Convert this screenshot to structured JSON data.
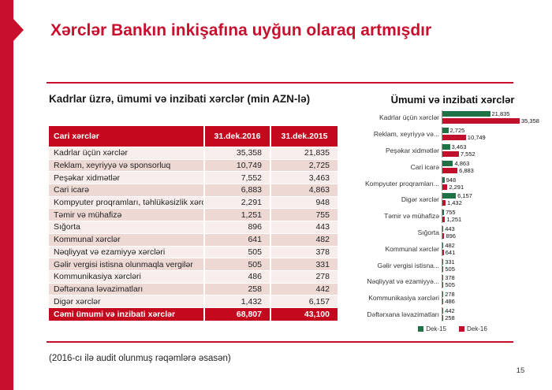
{
  "slide": {
    "title": "Xərclər Bankın inkişafına uyğun olaraq artmışdır",
    "footnote": "(2016-cı ilə audit olunmuş rəqəmlərə əsasən)",
    "page_number": "15"
  },
  "colors": {
    "brand_red": "#C8102E",
    "table_header_red": "#C4091E",
    "row_light": "#F7EDEB",
    "row_dark": "#EDD8D4",
    "bar_green": "#1F7246",
    "bar_red": "#C0102C"
  },
  "table": {
    "title": "Kadrlar üzrə, ümumi və inzibati xərclər (min AZN-lə)",
    "headers": [
      "Cari xərclər",
      "31.dek.2016",
      "31.dek.2015"
    ],
    "rows": [
      [
        "Kadrlar üçün xərclər",
        "35,358",
        "21,835"
      ],
      [
        "Reklam, xeyriyyə və sponsorluq",
        "10,749",
        "2,725"
      ],
      [
        "Peşəkar xidmətlər",
        "7,552",
        "3,463"
      ],
      [
        "Cari icarə",
        "6,883",
        "4,863"
      ],
      [
        "Kompyuter proqramları, təhlükəsizlik xərcləri",
        "2,291",
        "948"
      ],
      [
        "Təmir və mühafizə",
        "1,251",
        "755"
      ],
      [
        "Sığorta",
        "896",
        "443"
      ],
      [
        "Kommunal xərclər",
        "641",
        "482"
      ],
      [
        "Nəqliyyat və ezamiyyə xərcləri",
        "505",
        "378"
      ],
      [
        "Gəlir vergisi istisna olunmaqla vergilər",
        "505",
        "331"
      ],
      [
        "Kommunikasiya xərcləri",
        "486",
        "278"
      ],
      [
        "Dəftərxana ləvazimatları",
        "258",
        "442"
      ],
      [
        "Digər xərclər",
        "1,432",
        "6,157"
      ]
    ],
    "total_row": [
      "Cəmi ümumi və inzibati xərclər",
      "68,807",
      "43,100"
    ]
  },
  "chart_data": {
    "type": "bar",
    "orientation": "horizontal",
    "title": "Ümumi və inzibati xərclər",
    "categories": [
      "Kadrlar üçün xərclər",
      "Reklam, xeyriyyə və...",
      "Peşəkar xidmətlər",
      "Cari icarə",
      "Kompyuter proqramları...",
      "Digər xərclər",
      "Təmir və mühafizə",
      "Sığorta",
      "Kommunal xərclər",
      "Gəlir vergisi istisna...",
      "Nəqliyyat və ezamiyyə...",
      "Kommunikasiya xərcləri",
      "Dəftərxana ləvazimatları"
    ],
    "series": [
      {
        "name": "Dek-15",
        "color": "#1F7246",
        "values": [
          21835,
          2725,
          3463,
          4863,
          948,
          6157,
          755,
          443,
          482,
          331,
          378,
          278,
          442
        ],
        "labels": [
          "21,835",
          "2,725",
          "3,463",
          "4,863",
          "948",
          "6,157",
          "755",
          "443",
          "482",
          "331",
          "378",
          "278",
          "442"
        ]
      },
      {
        "name": "Dek-16",
        "color": "#C0102C",
        "values": [
          35358,
          10749,
          7552,
          6883,
          2291,
          1432,
          1251,
          896,
          641,
          505,
          505,
          486,
          258
        ],
        "labels": [
          "35,358",
          "10,749",
          "7,552",
          "6,883",
          "2,291",
          "1,432",
          "1,251",
          "896",
          "641",
          "505",
          "505",
          "486",
          "258"
        ]
      }
    ],
    "xmax": 35358,
    "grid": false,
    "legend_position": "bottom"
  }
}
